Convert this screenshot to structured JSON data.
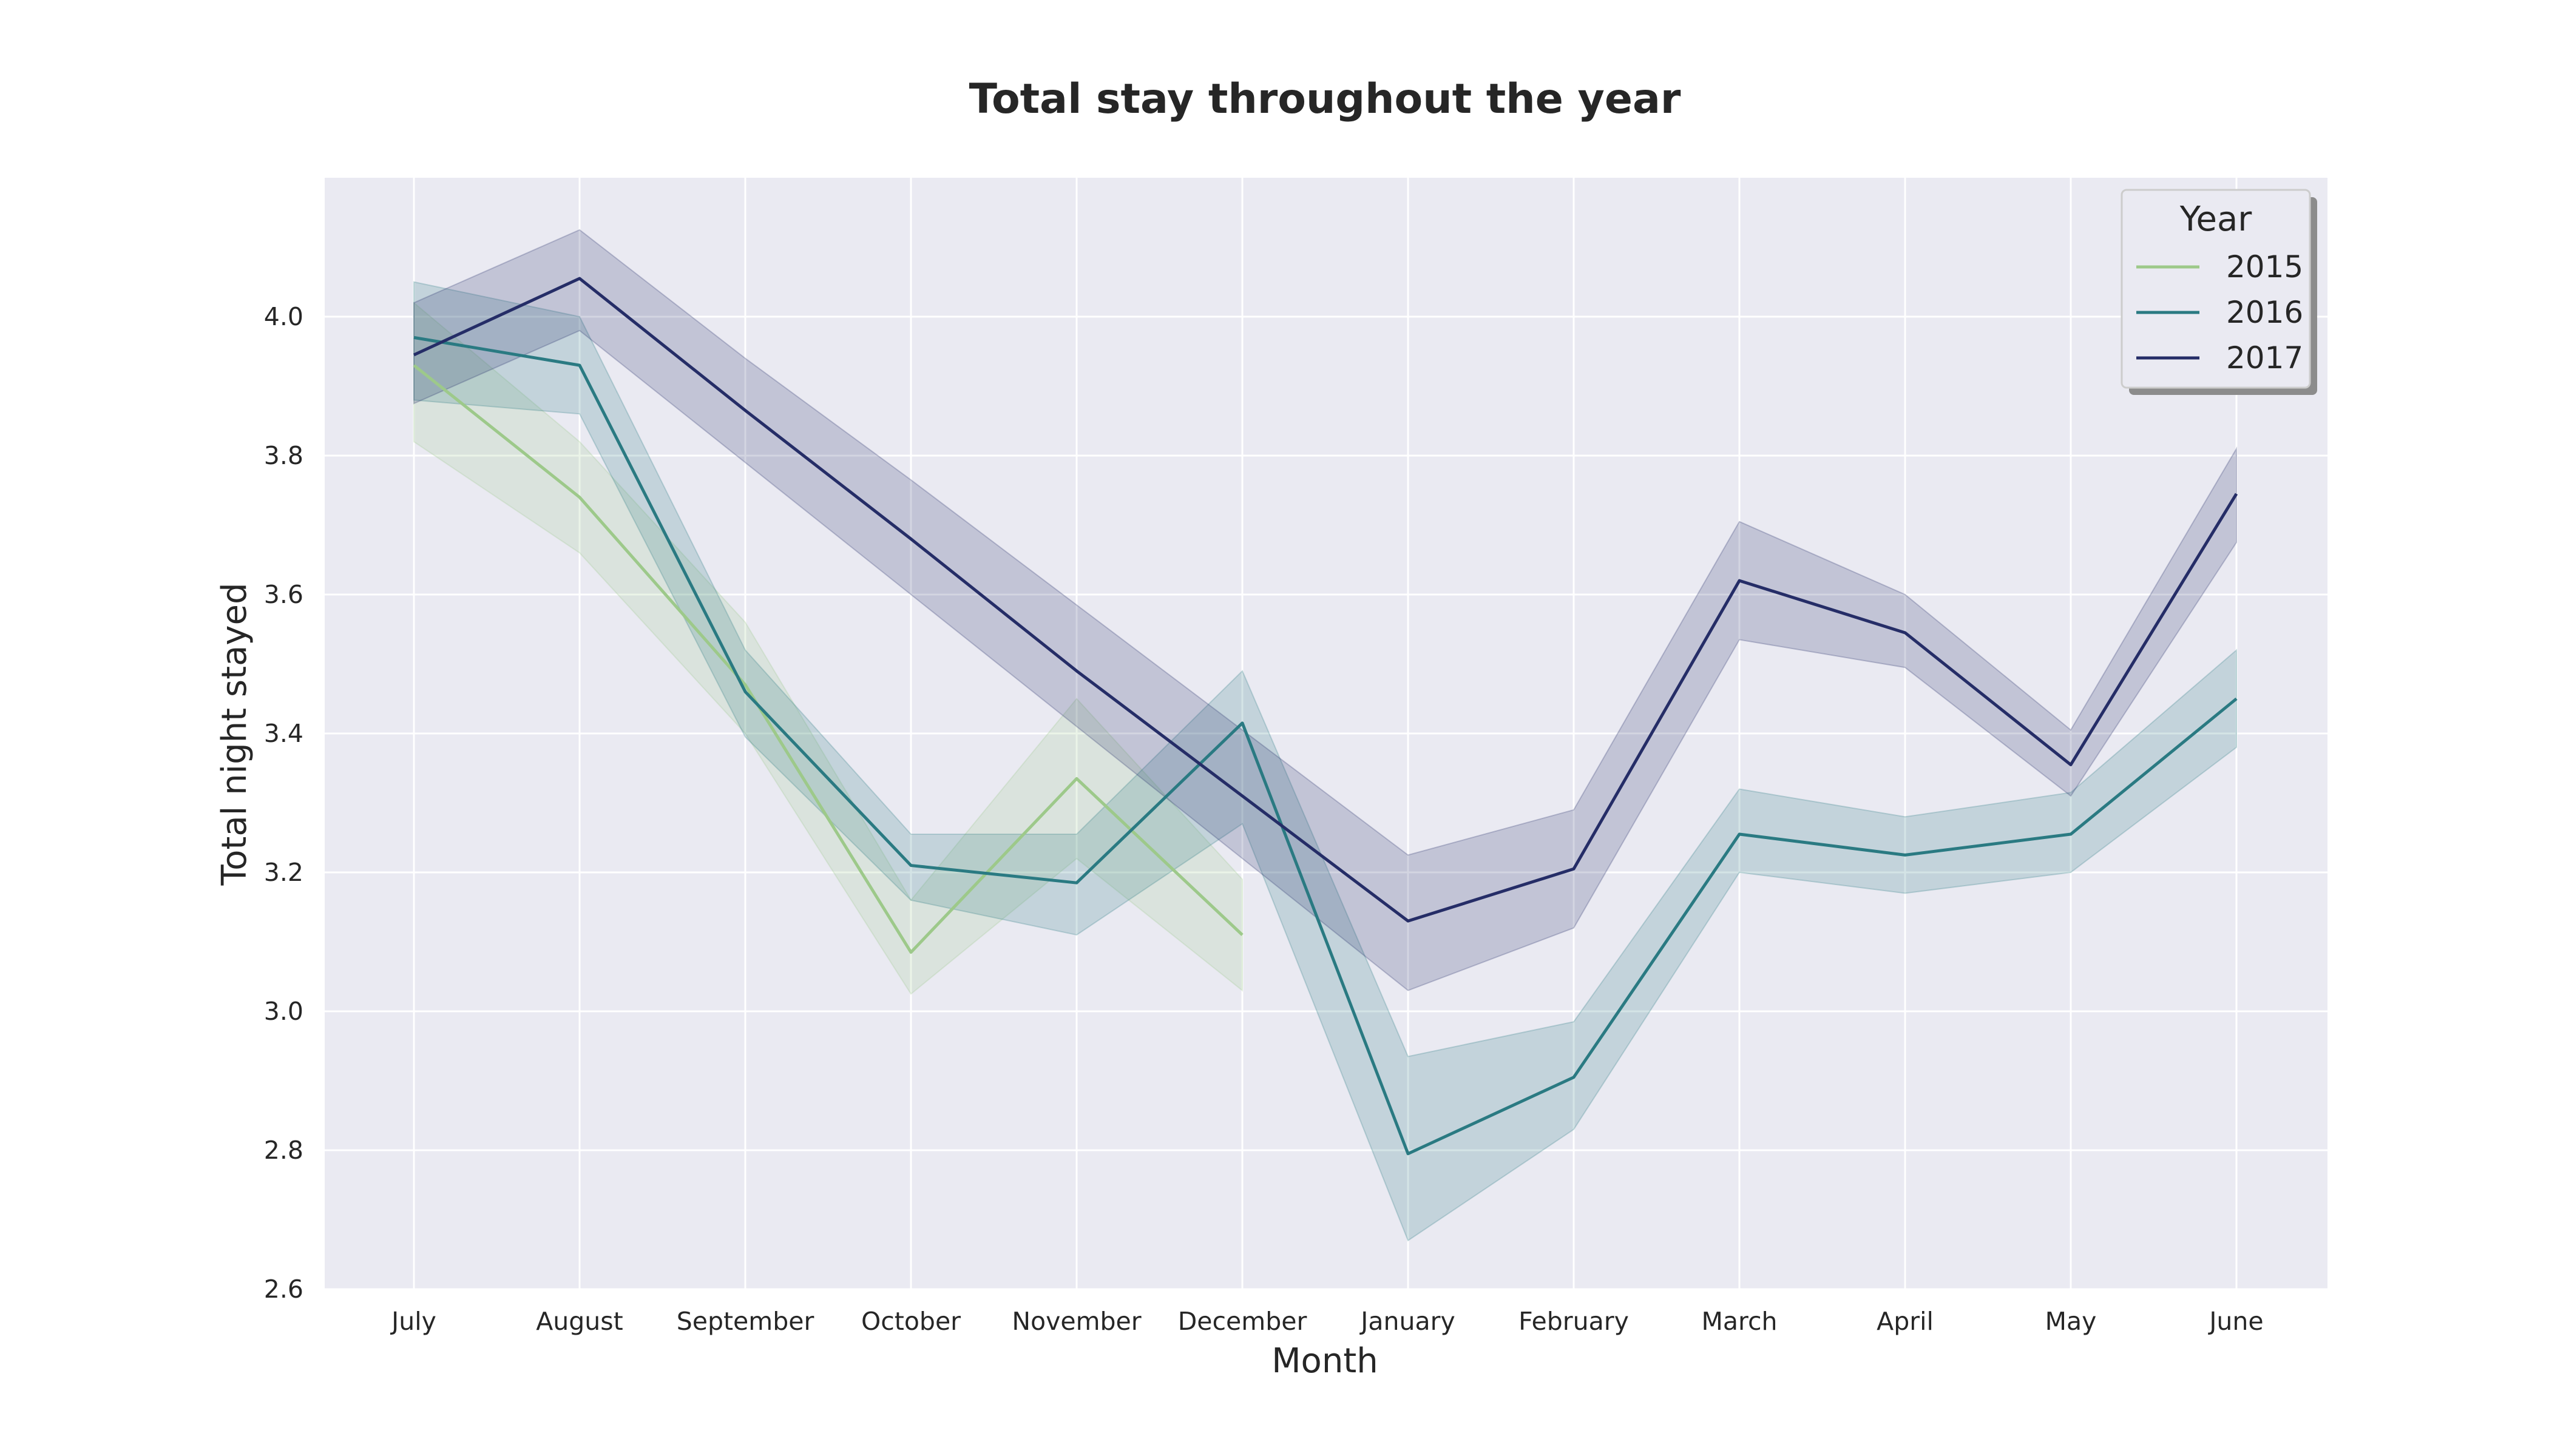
{
  "chart_data": {
    "type": "line",
    "title": "Total stay throughout the year",
    "xlabel": "Month",
    "ylabel": "Total night stayed",
    "categories": [
      "July",
      "August",
      "September",
      "October",
      "November",
      "December",
      "January",
      "February",
      "March",
      "April",
      "May",
      "June"
    ],
    "ylim": [
      2.6,
      4.2
    ],
    "yticks": [
      "2.6",
      "2.8",
      "3.0",
      "3.2",
      "3.4",
      "3.6",
      "3.8",
      "4.0"
    ],
    "grid": true,
    "legend": {
      "title": "Year",
      "placement": "top-right"
    },
    "series": [
      {
        "name": "2015",
        "color": "#9dc98a",
        "values": [
          3.93,
          3.74,
          3.47,
          3.085,
          3.335,
          3.11,
          null,
          null,
          null,
          null,
          null,
          null
        ],
        "ci_low": [
          3.82,
          3.66,
          3.4,
          3.025,
          3.22,
          3.03,
          null,
          null,
          null,
          null,
          null,
          null
        ],
        "ci_high": [
          4.02,
          3.82,
          3.56,
          3.16,
          3.45,
          3.19,
          null,
          null,
          null,
          null,
          null,
          null
        ]
      },
      {
        "name": "2016",
        "color": "#2a7a82",
        "values": [
          3.97,
          3.93,
          3.46,
          3.21,
          3.185,
          3.415,
          2.795,
          2.905,
          3.255,
          3.225,
          3.255,
          3.45
        ],
        "ci_low": [
          3.88,
          3.86,
          3.395,
          3.16,
          3.11,
          3.27,
          2.67,
          2.83,
          3.2,
          3.17,
          3.2,
          3.38
        ],
        "ci_high": [
          4.05,
          4.0,
          3.52,
          3.255,
          3.255,
          3.49,
          2.935,
          2.985,
          3.32,
          3.28,
          3.315,
          3.52
        ]
      },
      {
        "name": "2017",
        "color": "#252d67",
        "values": [
          3.945,
          4.055,
          3.865,
          3.68,
          3.49,
          3.31,
          3.13,
          3.205,
          3.62,
          3.545,
          3.355,
          3.745
        ],
        "ci_low": [
          3.875,
          3.98,
          3.79,
          3.6,
          3.41,
          3.22,
          3.03,
          3.12,
          3.535,
          3.495,
          3.31,
          3.675
        ],
        "ci_high": [
          4.02,
          4.125,
          3.94,
          3.765,
          3.585,
          3.405,
          3.225,
          3.29,
          3.705,
          3.6,
          3.405,
          3.81
        ]
      }
    ]
  }
}
